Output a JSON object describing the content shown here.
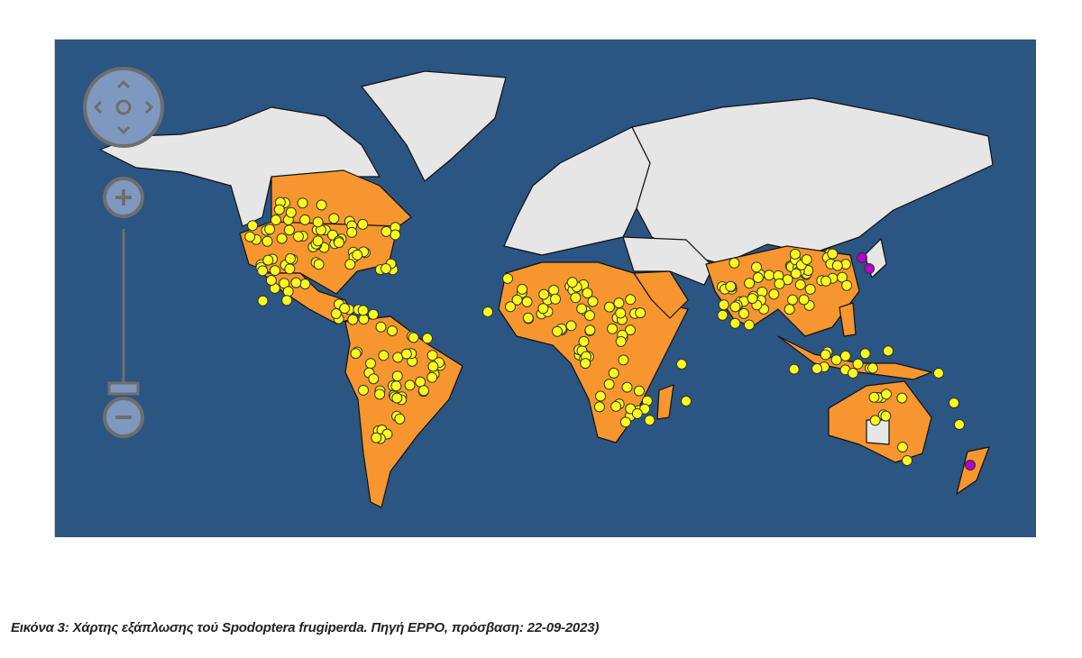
{
  "map": {
    "colors": {
      "ocean": "#2b5582",
      "land_absent": "#e6e6e6",
      "land_present": "#f7962f",
      "marker_present": "#ffff1a",
      "marker_transient": "#b400c8",
      "borders": "#111111",
      "controls": "#7f98bf"
    },
    "controls": {
      "pan": [
        "pan-up",
        "pan-left",
        "pan-center",
        "pan-right",
        "pan-down"
      ],
      "zoom_in": "+",
      "zoom_out": "−"
    }
  },
  "caption": "Εικόνα 3: Χάρτης εξάπλωσης τού Spodoptera frugiperda. Πηγή EPPO, πρόσβαση: 22-09-2023)"
}
